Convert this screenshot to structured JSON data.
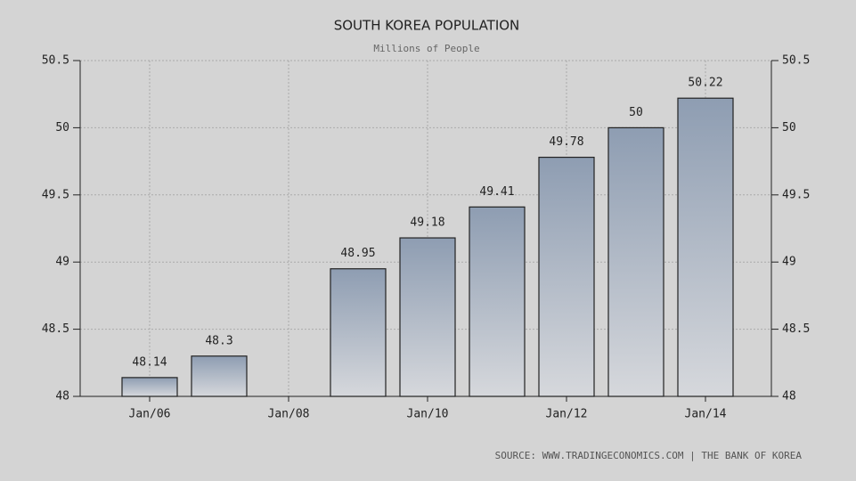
{
  "chart_data": {
    "type": "bar",
    "title": "SOUTH KOREA POPULATION",
    "subtitle": "Millions of People",
    "source": "SOURCE: WWW.TRADINGECONOMICS.COM | THE BANK OF KOREA",
    "categories": [
      "Jan/06",
      null,
      "Jan/08",
      null,
      "Jan/10",
      null,
      "Jan/12",
      null,
      "Jan/14"
    ],
    "values": [
      48.14,
      48.3,
      null,
      48.95,
      49.18,
      49.41,
      49.78,
      50,
      50.22
    ],
    "color": "#8e9db2",
    "ylim": [
      48,
      50.5
    ],
    "yticks": [
      48,
      48.5,
      49,
      49.5,
      50,
      50.5
    ],
    "y2lim": [
      48,
      50.5
    ],
    "y2ticks": [
      48,
      48.5,
      49,
      49.5,
      50,
      50.5
    ],
    "grid": true
  }
}
